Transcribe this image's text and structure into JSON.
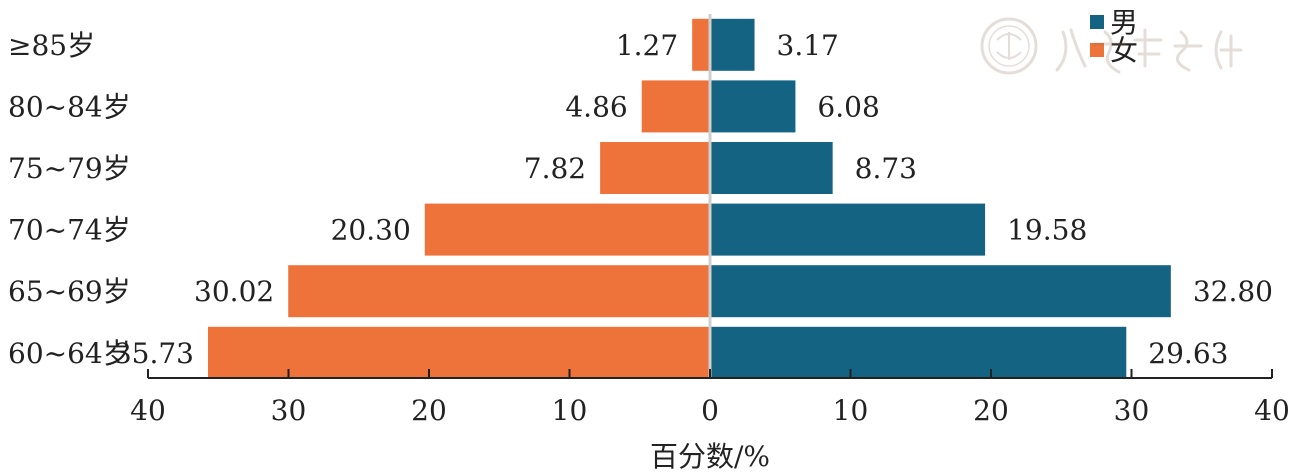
{
  "chart_data": {
    "type": "bar",
    "orientation": "horizontal-population-pyramid",
    "categories": [
      "≥85岁",
      "80~84岁",
      "75~79岁",
      "70~74岁",
      "65~69岁",
      "60~64岁"
    ],
    "series": [
      {
        "name": "男",
        "side": "right",
        "color": "#156382",
        "values": [
          3.17,
          6.08,
          8.73,
          19.58,
          32.8,
          29.63
        ]
      },
      {
        "name": "女",
        "side": "left",
        "color": "#ED733A",
        "values": [
          1.27,
          4.86,
          7.82,
          20.3,
          30.02,
          35.73
        ]
      }
    ],
    "value_labels": {
      "男": [
        "3.17",
        "6.08",
        "8.73",
        "19.58",
        "32.80",
        "29.63"
      ],
      "女": [
        "1.27",
        "4.86",
        "7.82",
        "20.30",
        "30.02",
        "35.73"
      ]
    },
    "xlabel": "百分数/%",
    "xlim": [
      -40,
      40
    ],
    "x_ticks": [
      -40,
      -30,
      -20,
      -10,
      0,
      10,
      20,
      30,
      40
    ],
    "x_tick_labels": [
      "40",
      "30",
      "20",
      "10",
      "0",
      "10",
      "20",
      "30",
      "40"
    ],
    "legend": {
      "placement": "top-right",
      "entries": [
        "男",
        "女"
      ]
    },
    "grid": false
  },
  "watermark": {
    "icon": "seal-watermark-icon"
  }
}
